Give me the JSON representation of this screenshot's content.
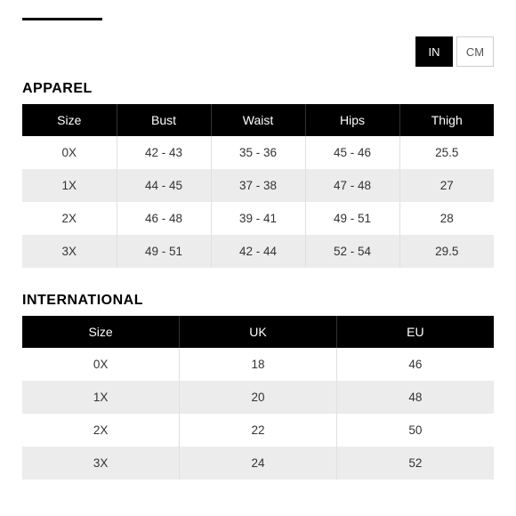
{
  "colors": {
    "header_bg": "#000000",
    "header_text": "#ffffff",
    "row_odd_bg": "#ffffff",
    "row_even_bg": "#ececec",
    "cell_text": "#333333",
    "border": "#e0e0e0",
    "active_btn_bg": "#000000",
    "inactive_btn_border": "#cccccc"
  },
  "units": {
    "in_label": "IN",
    "cm_label": "CM",
    "active": "IN"
  },
  "apparel": {
    "title": "APPAREL",
    "columns": [
      "Size",
      "Bust",
      "Waist",
      "Hips",
      "Thigh"
    ],
    "rows": [
      [
        "0X",
        "42 - 43",
        "35 - 36",
        "45 - 46",
        "25.5"
      ],
      [
        "1X",
        "44 - 45",
        "37 - 38",
        "47 - 48",
        "27"
      ],
      [
        "2X",
        "46 - 48",
        "39 - 41",
        "49 - 51",
        "28"
      ],
      [
        "3X",
        "49 - 51",
        "42 - 44",
        "52 - 54",
        "29.5"
      ]
    ]
  },
  "international": {
    "title": "INTERNATIONAL",
    "columns": [
      "Size",
      "UK",
      "EU"
    ],
    "rows": [
      [
        "0X",
        "18",
        "46"
      ],
      [
        "1X",
        "20",
        "48"
      ],
      [
        "2X",
        "22",
        "50"
      ],
      [
        "3X",
        "24",
        "52"
      ]
    ]
  }
}
